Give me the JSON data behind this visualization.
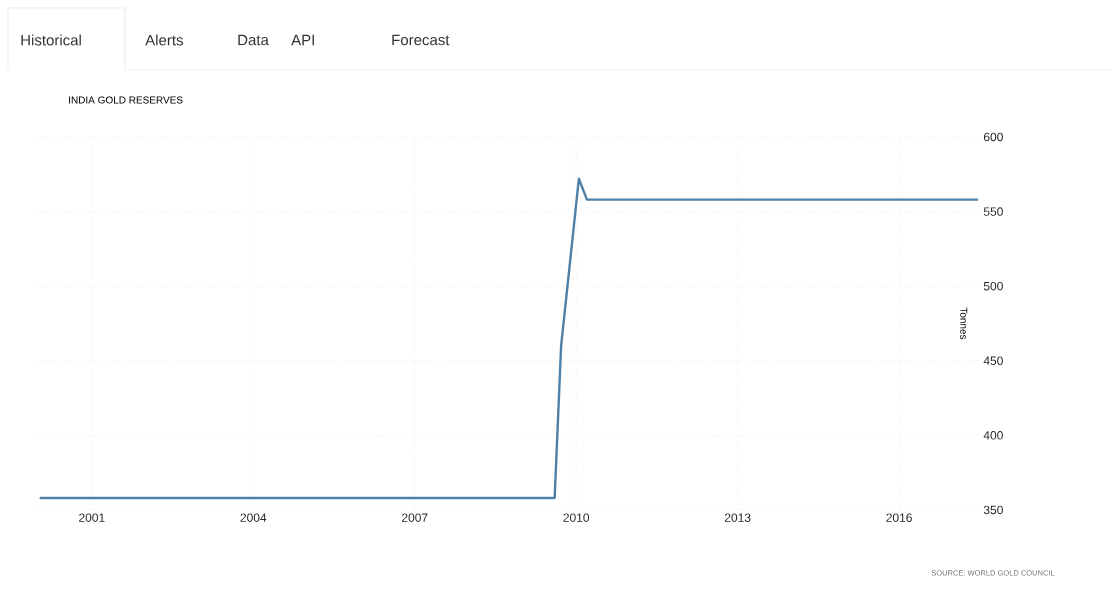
{
  "chart_data": {
    "type": "line",
    "title": "INDIA GOLD RESERVES",
    "ylabel": "Tonnes",
    "annotations": [
      "Historical",
      "Alerts",
      "Data",
      "API",
      "Forecast",
      "SOURCE: WORLD GOLD COUNCIL"
    ],
    "series": [
      {
        "color": "#4f81a8",
        "x": [
          2000.05,
          2009.6,
          2009.72,
          2010.05,
          2010.2,
          2017.45
        ],
        "values": [
          358,
          358,
          460,
          572,
          558,
          558
        ]
      }
    ],
    "xlim": [
      2000,
      2017.5
    ],
    "xticks": [
      2001,
      2004,
      2007,
      2010,
      2013,
      2016
    ],
    "ylim": [
      350,
      600
    ],
    "yticks": [
      350,
      400,
      450,
      500,
      550,
      600
    ],
    "grid": true,
    "marker": "none",
    "line_style": "solid"
  }
}
